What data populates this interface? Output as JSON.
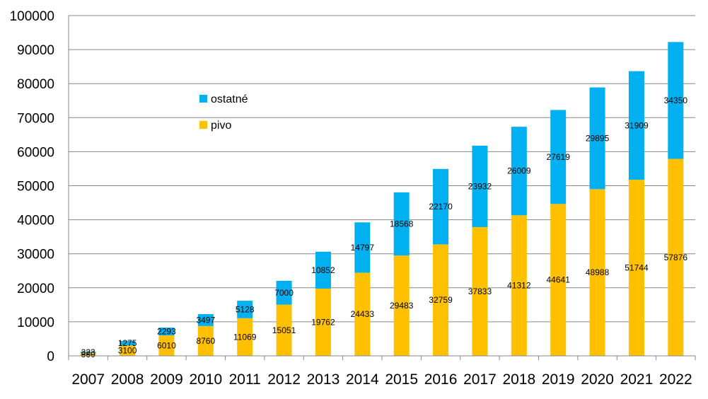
{
  "chart_data": {
    "type": "bar",
    "stacked": true,
    "categories": [
      "2007",
      "2008",
      "2009",
      "2010",
      "2011",
      "2012",
      "2013",
      "2014",
      "2015",
      "2016",
      "2017",
      "2018",
      "2019",
      "2020",
      "2021",
      "2022"
    ],
    "series": [
      {
        "name": "pivo",
        "color": "#FFC000",
        "values": [
          880,
          3100,
          6010,
          8760,
          11069,
          15051,
          19762,
          24433,
          29483,
          32759,
          37833,
          41312,
          44641,
          48988,
          51744,
          57876
        ]
      },
      {
        "name": "ostatné",
        "color": "#00B0F0",
        "values": [
          323,
          1275,
          2293,
          3497,
          5128,
          7000,
          10852,
          14797,
          18568,
          22170,
          23932,
          26009,
          27619,
          29895,
          31909,
          34350
        ]
      }
    ],
    "ylim": [
      0,
      100000
    ],
    "yticks": [
      0,
      10000,
      20000,
      30000,
      40000,
      50000,
      60000,
      70000,
      80000,
      90000,
      100000
    ],
    "grid": true,
    "legend": {
      "placement": "top-left",
      "order": [
        "ostatné",
        "pivo"
      ]
    }
  }
}
